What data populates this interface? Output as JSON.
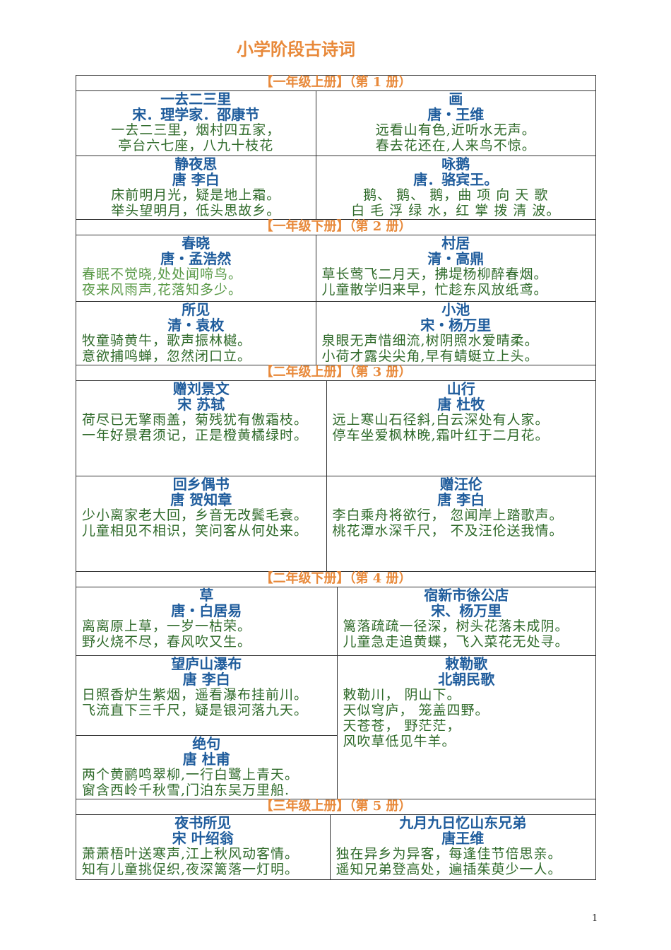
{
  "title": "小学阶段古诗词",
  "sections": [
    {
      "header": "【一年级上册】（第 1 册）",
      "rows": [
        {
          "left": [
            {
              "title": "一去二三里",
              "author": "宋．理学家．邵康节",
              "lines": [
                "一去二三里，烟村四五家，",
                "亭台六七座，八九十枝花"
              ]
            }
          ],
          "right": [
            {
              "title": "画",
              "author": "唐・王维",
              "lines": [
                "远看山有色,近听水无声。",
                "春去花还在,人来鸟不惊。"
              ]
            }
          ]
        },
        {
          "left": [
            {
              "title": "静夜思",
              "author": "唐 李白",
              "lines": [
                "床前明月光，疑是地上霜。",
                "举头望明月，低头思故乡。"
              ]
            }
          ],
          "right": [
            {
              "title": "咏鹅",
              "author": "唐．骆宾王。",
              "lines": [
                "鹅、 鹅、 鹅，曲 项 向 天 歌",
                "白 毛 浮 绿 水，红 掌 拨 清 波。"
              ]
            }
          ]
        }
      ]
    },
    {
      "header": "【一年级下册】（第 2 册）",
      "rows": [
        {
          "left": [
            {
              "title": "春晓",
              "author": "唐・孟浩然",
              "lines": [
                "春眠不觉晓,处处闻啼鸟。",
                "夜来风雨声,花落知多少。"
              ]
            }
          ],
          "right": [
            {
              "title": "村居",
              "author": "清・高鼎",
              "lines": [
                "草长莺飞二月天，拂堤杨柳醉春烟。",
                "儿童散学归来早，忙趁东风放纸鸢。"
              ]
            }
          ]
        },
        {
          "left": [
            {
              "title": "所见",
              "author": "清・袁枚",
              "lines": [
                "牧童骑黄牛，歌声振林樾。",
                "意欲捕鸣蝉，忽然闭口立。"
              ]
            }
          ],
          "right": [
            {
              "title": "小池",
              "author": "宋・杨万里",
              "lines": [
                "泉眼无声惜细流,树阴照水爱晴柔。",
                "小荷才露尖尖角,早有蜻蜓立上头。"
              ]
            }
          ]
        }
      ]
    },
    {
      "header": "【二年级上册】（第 3 册）",
      "rows": [
        {
          "left": [
            {
              "title": "赠刘景文",
              "author": "宋 苏轼",
              "lines": [
                "荷尽已无擎雨盖，菊残犹有傲霜枝。",
                "一年好景君须记，正是橙黄橘绿时。"
              ]
            }
          ],
          "right": [
            {
              "title": "山行",
              "author": "唐 杜牧",
              "lines": [
                "远上寒山石径斜,白云深处有人家。",
                "停车坐爱枫林晚,霜叶红于二月花。"
              ]
            }
          ]
        },
        {
          "left": [
            {
              "title": "回乡偶书",
              "author": "唐 贺知章",
              "lines": [
                "少小离家老大回，乡音无改鬓毛衰。",
                "儿童相见不相识，笑问客从何处来。"
              ]
            }
          ],
          "right": [
            {
              "title": "赠汪伦",
              "author": "唐 李白",
              "lines": [
                "李白乘舟将欲行， 忽闻岸上踏歌声。",
                "桃花潭水深千尺， 不及汪伦送我情。"
              ]
            }
          ]
        }
      ]
    },
    {
      "header": "【二年级下册】（第 4 册）",
      "rows": [
        {
          "left": [
            {
              "title": "草",
              "author": "唐・白居易",
              "lines": [
                "离离原上草，一岁一枯荣。",
                "野火烧不尽，春风吹又生。"
              ]
            }
          ],
          "right": [
            {
              "title": "宿新市徐公店",
              "author": "宋、杨万里",
              "lines": [
                "篱落疏疏一径深，树头花落未成阴。",
                "儿童急走追黄蝶，飞入菜花无处寻。"
              ]
            }
          ]
        },
        {
          "left": [
            {
              "title": "望庐山瀑布",
              "author": "唐 李白",
              "lines": [
                "日照香炉生紫烟，遥看瀑布挂前川。",
                "飞流直下三千尺，疑是银河落九天。"
              ]
            },
            {
              "title": "绝句",
              "author": "唐 杜甫",
              "lines": [
                "两个黄鹂鸣翠柳,一行白鹭上青天。",
                "窗含西岭千秋雪,门泊东吴万里船."
              ]
            }
          ],
          "right": [
            {
              "title": "敕勒歌",
              "author": "北朝民歌",
              "lines": [
                "敕勒川， 阴山下。",
                "天似穹庐， 笼盖四野。",
                "天苍苍， 野茫茫，",
                "风吹草低见牛羊。"
              ]
            }
          ]
        }
      ]
    },
    {
      "header": "【三年级上册】（第 5 册）",
      "rows": [
        {
          "left": [
            {
              "title": "夜书所见",
              "author": "宋 叶绍翁",
              "lines": [
                "萧萧梧叶送寒声,江上秋风动客情。",
                "知有儿童挑促织,夜深篱落一灯明。"
              ]
            }
          ],
          "right": [
            {
              "title": "九月九日忆山东兄弟",
              "author": "唐王维",
              "lines": [
                "独在异乡为异客，每逢佳节倍思亲。",
                "遥知兄弟登高处，遍插茱萸少一人。"
              ]
            }
          ]
        }
      ]
    }
  ],
  "page_number": "1"
}
